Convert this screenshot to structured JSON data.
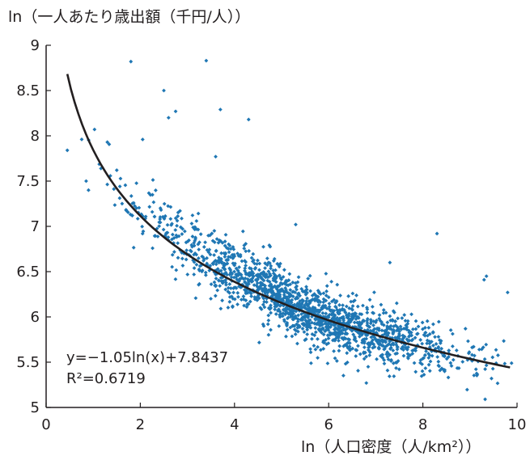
{
  "chart_data": {
    "type": "scatter",
    "ylabel": "ln（一人あたり歳出額（千円/人））",
    "xlabel": "ln（人口密度（人/km²））",
    "xlim": [
      0,
      10
    ],
    "ylim": [
      5,
      9
    ],
    "xticks": [
      "0",
      "2",
      "4",
      "6",
      "8",
      "10"
    ],
    "yticks": [
      "5",
      "5.5",
      "6",
      "6.5",
      "7",
      "7.5",
      "8",
      "8.5",
      "9"
    ],
    "point_color": "#1f77b4",
    "trend_color": "#231f20",
    "trendline": {
      "type": "log",
      "a": -1.05,
      "b": 7.8437,
      "x_range": [
        0.45,
        9.85
      ]
    },
    "equation": "y=−1.05ln(x)+7.8437",
    "r_squared": "R²=0.6719",
    "outliers": [
      {
        "x": 0.45,
        "y": 7.84
      },
      {
        "x": 1.8,
        "y": 8.82
      },
      {
        "x": 3.4,
        "y": 8.83
      },
      {
        "x": 2.5,
        "y": 8.5
      },
      {
        "x": 2.75,
        "y": 8.27
      },
      {
        "x": 2.6,
        "y": 8.2
      },
      {
        "x": 3.7,
        "y": 8.29
      },
      {
        "x": 4.3,
        "y": 8.18
      },
      {
        "x": 2.05,
        "y": 7.96
      },
      {
        "x": 1.3,
        "y": 7.93
      },
      {
        "x": 3.6,
        "y": 7.77
      },
      {
        "x": 8.3,
        "y": 6.92
      },
      {
        "x": 9.35,
        "y": 6.45
      },
      {
        "x": 9.3,
        "y": 6.41
      },
      {
        "x": 9.8,
        "y": 6.27
      },
      {
        "x": 7.3,
        "y": 6.6
      },
      {
        "x": 6.8,
        "y": 5.27
      },
      {
        "x": 5.3,
        "y": 7.02
      },
      {
        "x": 0.85,
        "y": 7.5
      },
      {
        "x": 0.9,
        "y": 7.4
      },
      {
        "x": 1.5,
        "y": 7.62
      }
    ],
    "cloud": {
      "n": 1700,
      "x_range": [
        0.7,
        9.9
      ],
      "x_spread_center": 5.5,
      "y_jitter_sd": 0.16,
      "upper_tail_sd": 0.12
    }
  }
}
